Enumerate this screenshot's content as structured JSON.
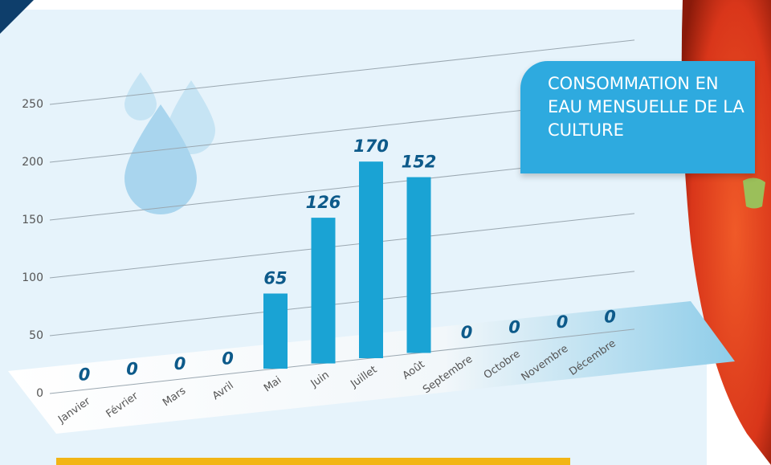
{
  "chart_data": {
    "type": "bar",
    "title": "CONSOMMATION EN EAU MENSUELLE DE LA CULTURE",
    "categories": [
      "Janvier",
      "Février",
      "Mars",
      "Avril",
      "Mai",
      "Juin",
      "Juillet",
      "Août",
      "Septembre",
      "Octobre",
      "Novembre",
      "Décembre"
    ],
    "values": [
      0,
      0,
      0,
      0,
      65,
      126,
      170,
      152,
      0,
      0,
      0,
      0
    ],
    "color": "#1aa3d4",
    "ylim": [
      0,
      250
    ],
    "yticks": [
      0,
      50,
      100,
      150,
      200,
      250
    ],
    "grid": true
  }
}
